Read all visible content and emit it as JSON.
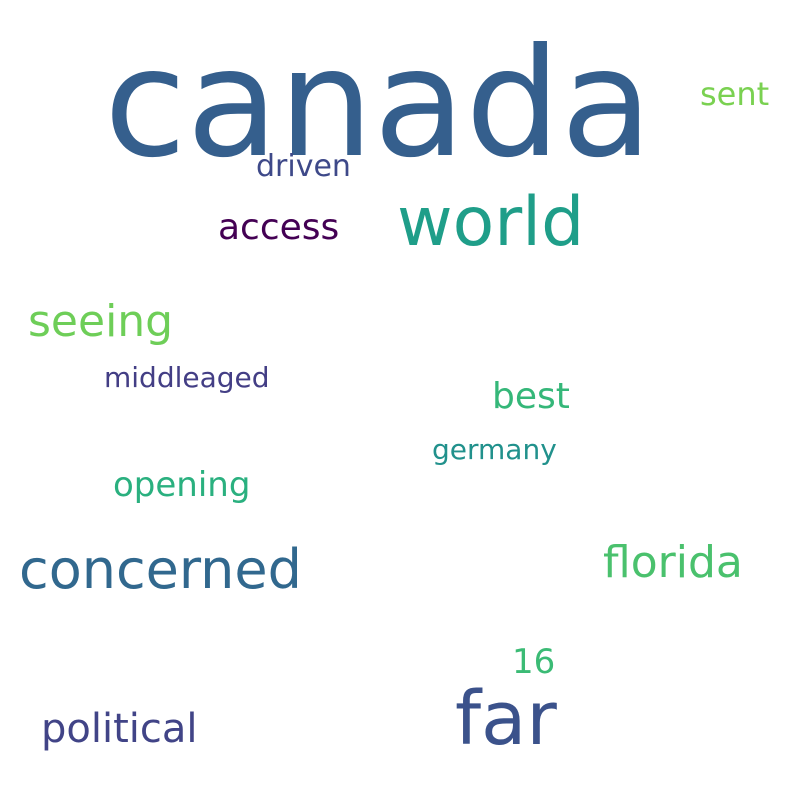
{
  "words": [
    {
      "text": "canada",
      "color": "#355f8d"
    },
    {
      "text": "sent",
      "color": "#7ad151"
    },
    {
      "text": "driven",
      "color": "#3e4989"
    },
    {
      "text": "world",
      "color": "#1f9e89"
    },
    {
      "text": "access",
      "color": "#440154"
    },
    {
      "text": "seeing",
      "color": "#6ece58"
    },
    {
      "text": "middleaged",
      "color": "#433e85"
    },
    {
      "text": "best",
      "color": "#35b779"
    },
    {
      "text": "germany",
      "color": "#21918c"
    },
    {
      "text": "opening",
      "color": "#2ab07f"
    },
    {
      "text": "concerned",
      "color": "#31688e"
    },
    {
      "text": "florida",
      "color": "#4ac16d"
    },
    {
      "text": "16",
      "color": "#3bbb75"
    },
    {
      "text": "far",
      "color": "#3b528b"
    },
    {
      "text": "political",
      "color": "#414487"
    }
  ]
}
